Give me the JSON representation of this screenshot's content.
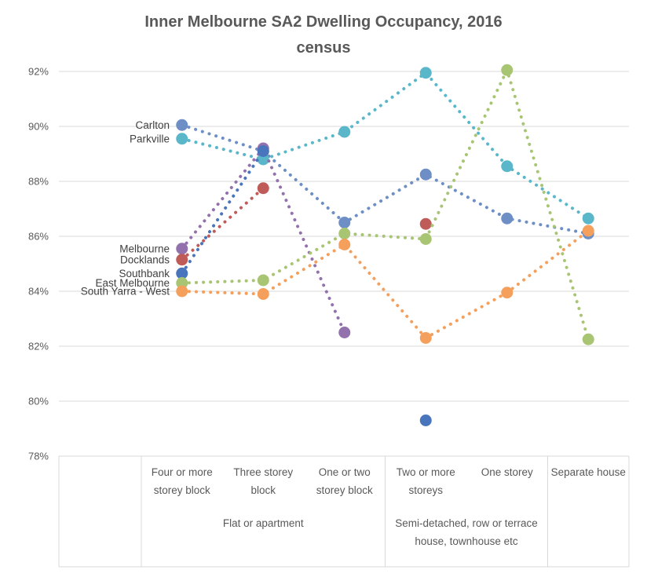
{
  "title_lines": [
    "Inner Melbourne SA2 Dwelling Occupancy, 2016",
    "census"
  ],
  "chart_data": {
    "type": "line",
    "style": "dotted connector lines with circular markers; series labeled at first data point; no legend box",
    "title": "Inner Melbourne SA2 Dwelling Occupancy, 2016 census",
    "categories": [
      "Four or more storey block",
      "Three storey block",
      "One or two storey block",
      "Two or more storeys",
      "One storey",
      "Separate house"
    ],
    "category_groups": [
      {
        "label": "Flat or apartment",
        "start": 0,
        "end": 2
      },
      {
        "label": "Semi-detached, row or terrace house, townhouse etc",
        "start": 3,
        "end": 4
      },
      {
        "label": "",
        "start": 5,
        "end": 5
      }
    ],
    "y_axis": {
      "min": 78,
      "max": 92,
      "step": 2,
      "format": "percent",
      "tick_labels": [
        "78%",
        "80%",
        "82%",
        "84%",
        "86%",
        "88%",
        "90%",
        "92%"
      ]
    },
    "xlabel": "",
    "ylabel": "",
    "grid": "horizontal",
    "legend_position": "none",
    "series": [
      {
        "name": "Carlton",
        "color": "#6d8fc6",
        "values": [
          90.05,
          89.1,
          86.5,
          88.25,
          86.65,
          86.1
        ]
      },
      {
        "name": "Parkville",
        "color": "#5ab7ca",
        "values": [
          89.55,
          88.8,
          89.8,
          91.95,
          88.55,
          86.65
        ]
      },
      {
        "name": "Melbourne",
        "color": "#9271ad",
        "values": [
          85.55,
          89.2,
          82.5,
          null,
          null,
          null
        ]
      },
      {
        "name": "Docklands",
        "color": "#bf5b58",
        "values": [
          85.15,
          87.75,
          null,
          86.45,
          null,
          null
        ]
      },
      {
        "name": "Southbank",
        "color": "#4875bb",
        "values": [
          84.65,
          89.1,
          null,
          79.3,
          null,
          null
        ]
      },
      {
        "name": "East Melbourne",
        "color": "#a8c573",
        "values": [
          84.3,
          84.4,
          86.1,
          85.9,
          92.05,
          82.25
        ]
      },
      {
        "name": "South Yarra - West",
        "color": "#f4a05c",
        "values": [
          84.0,
          83.9,
          85.7,
          82.3,
          83.95,
          86.2
        ]
      }
    ]
  },
  "colors": {
    "title_text": "#595959",
    "axis_text": "#595959",
    "series_label_text": "#3f3f3f",
    "gridline": "#d9d9d9",
    "table_border": "#d9d9d9",
    "background": "#ffffff"
  }
}
